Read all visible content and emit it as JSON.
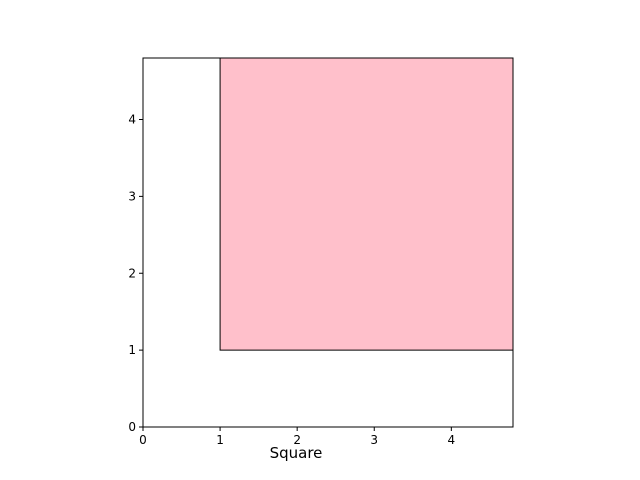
{
  "chart_data": {
    "type": "area",
    "title": "Square",
    "xlabel": "",
    "ylabel": "",
    "xlim": [
      0,
      4.8
    ],
    "ylim": [
      0,
      4.8
    ],
    "xticks": [
      "0",
      "1",
      "2",
      "3",
      "4"
    ],
    "yticks": [
      "0",
      "1",
      "2",
      "3",
      "4"
    ],
    "grid": false,
    "shape": {
      "kind": "square",
      "x": 1,
      "y": 1,
      "width": 3.8,
      "height": 3.8,
      "fill": "#ffc0cb",
      "edge": "#000000"
    }
  }
}
